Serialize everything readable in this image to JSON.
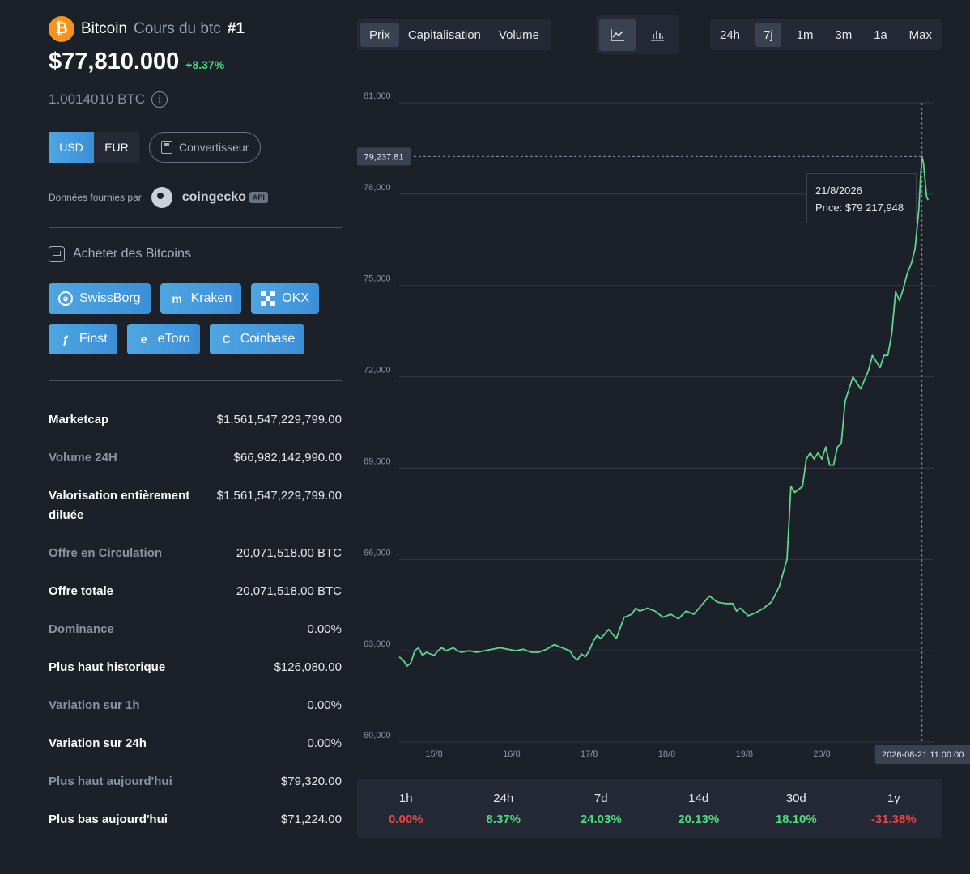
{
  "coin": {
    "icon": "bitcoin-icon",
    "name": "Bitcoin",
    "subtitle": "Cours du btc",
    "rank": "#1",
    "price": "$77,810.000",
    "change": "+8.37%",
    "btc_amount": "1.0014010 BTC"
  },
  "currency": {
    "usd": "USD",
    "eur": "EUR",
    "converter": "Convertisseur"
  },
  "provider": {
    "label": "Données fournies par",
    "name": "coingecko",
    "badge": "API"
  },
  "buy": {
    "title": "Acheter des Bitcoins",
    "exchanges": [
      {
        "label": "SwissBorg",
        "icon": "swissborg-icon"
      },
      {
        "label": "Kraken",
        "icon": "kraken-icon"
      },
      {
        "label": "OKX",
        "icon": "okx-icon"
      },
      {
        "label": "Finst",
        "icon": "finst-icon"
      },
      {
        "label": "eToro",
        "icon": "etoro-icon"
      },
      {
        "label": "Coinbase",
        "icon": "coinbase-icon"
      }
    ]
  },
  "stats": [
    {
      "label": "Marketcap",
      "value": "$1,561,547,229,799.00"
    },
    {
      "label": "Volume 24H",
      "value": "$66,982,142,990.00"
    },
    {
      "label": "Valorisation entièrement diluée",
      "value": "$1,561,547,229,799.00"
    },
    {
      "label": "Offre en Circulation",
      "value": "20,071,518.00 BTC"
    },
    {
      "label": "Offre totale",
      "value": "20,071,518.00 BTC"
    },
    {
      "label": "Dominance",
      "value": "0.00%"
    },
    {
      "label": "Plus haut historique",
      "value": "$126,080.00"
    },
    {
      "label": "Variation sur 1h",
      "value": "0.00%"
    },
    {
      "label": "Variation sur 24h",
      "value": "0.00%"
    },
    {
      "label": "Plus haut aujourd'hui",
      "value": "$79,320.00"
    },
    {
      "label": "Plus bas aujourd'hui",
      "value": "$71,224.00"
    }
  ],
  "tabs": [
    "Prix",
    "Capitalisation",
    "Volume"
  ],
  "active_tab": "Prix",
  "views": [
    "line-chart-icon",
    "bar-chart-icon"
  ],
  "ranges": [
    "24h",
    "7j",
    "1m",
    "3m",
    "1a",
    "Max"
  ],
  "active_range": "7j",
  "tooltip": {
    "date": "21/8/2026",
    "price": "Price: $79 217,948"
  },
  "crosshair": {
    "price_label": "79,237.81",
    "time_label": "2026-08-21 11:00:00"
  },
  "changes": [
    {
      "period": "1h",
      "value": "0.00%",
      "sign": "neg"
    },
    {
      "period": "24h",
      "value": "8.37%",
      "sign": "pos"
    },
    {
      "period": "7d",
      "value": "24.03%",
      "sign": "pos"
    },
    {
      "period": "14d",
      "value": "20.13%",
      "sign": "pos"
    },
    {
      "period": "30d",
      "value": "18.10%",
      "sign": "pos"
    },
    {
      "period": "1y",
      "value": "-31.38%",
      "sign": "neg"
    }
  ],
  "colors": {
    "accent": "#3c8fd8",
    "positive": "#4ade80",
    "negative": "#ef4444",
    "line": "#5fd68a"
  },
  "chart_data": {
    "type": "line",
    "title": "",
    "xlabel": "",
    "ylabel": "",
    "ylim": [
      60000,
      81000
    ],
    "y_ticks": [
      "60,000",
      "63,000",
      "66,000",
      "69,000",
      "72,000",
      "75,000",
      "78,000",
      "81,000"
    ],
    "y_tick_values": [
      60000,
      63000,
      66000,
      69000,
      72000,
      75000,
      78000,
      81000
    ],
    "x_ticks": [
      "15/8",
      "16/8",
      "17/8",
      "18/8",
      "19/8",
      "20/8"
    ],
    "x_tick_values": [
      0.45,
      1.45,
      2.45,
      3.45,
      4.45,
      5.45
    ],
    "xlim": [
      0,
      6.9
    ],
    "grid": true,
    "series": [
      {
        "x": [
          0.0,
          0.05,
          0.1,
          0.15,
          0.2,
          0.25,
          0.3,
          0.35,
          0.4,
          0.45,
          0.5,
          0.55,
          0.6,
          0.65,
          0.7,
          0.75,
          0.8,
          0.9,
          1.0,
          1.1,
          1.2,
          1.3,
          1.4,
          1.5,
          1.6,
          1.7,
          1.8,
          1.9,
          2.0,
          2.1,
          2.2,
          2.25,
          2.3,
          2.35,
          2.4,
          2.45,
          2.5,
          2.55,
          2.6,
          2.7,
          2.8,
          2.9,
          3.0,
          3.05,
          3.1,
          3.2,
          3.3,
          3.4,
          3.5,
          3.6,
          3.7,
          3.8,
          3.9,
          4.0,
          4.1,
          4.2,
          4.3,
          4.35,
          4.4,
          4.5,
          4.6,
          4.7,
          4.8,
          4.9,
          5.0,
          5.05,
          5.1,
          5.15,
          5.2,
          5.25,
          5.3,
          5.35,
          5.4,
          5.45,
          5.5,
          5.55,
          5.6,
          5.65,
          5.7,
          5.75,
          5.8,
          5.85,
          5.9,
          5.95,
          6.0,
          6.05,
          6.1,
          6.15,
          6.2,
          6.25,
          6.3,
          6.35,
          6.4,
          6.45,
          6.5,
          6.55,
          6.6,
          6.65,
          6.7,
          6.72,
          6.74,
          6.76,
          6.8,
          6.82
        ],
        "y": [
          62800,
          62700,
          62500,
          62600,
          63000,
          63100,
          62850,
          62950,
          62900,
          62850,
          63000,
          63100,
          63000,
          63050,
          63100,
          63000,
          62950,
          63000,
          62950,
          63000,
          63050,
          63100,
          63050,
          63000,
          63050,
          62950,
          62950,
          63050,
          63200,
          63100,
          63000,
          62800,
          62700,
          62900,
          62800,
          63000,
          63300,
          63500,
          63400,
          63700,
          63400,
          64100,
          64200,
          64400,
          64300,
          64400,
          64300,
          64100,
          64200,
          64050,
          64300,
          64200,
          64500,
          64800,
          64600,
          64550,
          64550,
          64300,
          64400,
          64150,
          64250,
          64400,
          64600,
          65100,
          66000,
          68400,
          68200,
          68300,
          68400,
          69300,
          69500,
          69300,
          69500,
          69300,
          69700,
          69100,
          69100,
          69700,
          69800,
          71200,
          71600,
          72000,
          71800,
          71600,
          71900,
          72200,
          72700,
          72500,
          72300,
          72700,
          72700,
          73400,
          74800,
          74500,
          74900,
          75400,
          75700,
          76200,
          77500,
          78500,
          79237,
          79000,
          77900,
          77810
        ]
      }
    ]
  }
}
